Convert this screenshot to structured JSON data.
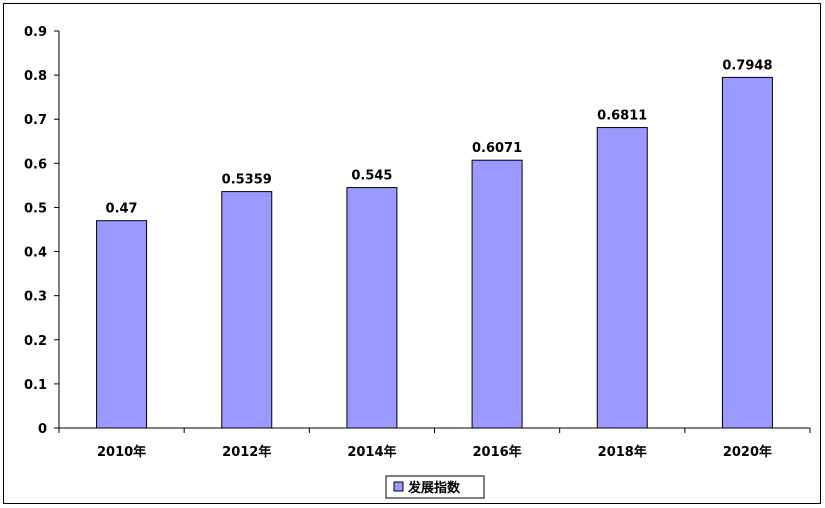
{
  "chart_data": {
    "type": "bar",
    "categories": [
      "2010年",
      "2012年",
      "2014年",
      "2016年",
      "2018年",
      "2020年"
    ],
    "series": [
      {
        "name": "发展指数",
        "values": [
          0.47,
          0.5359,
          0.545,
          0.6071,
          0.6811,
          0.7948
        ],
        "value_labels": [
          "0.47",
          "0.5359",
          "0.545",
          "0.6071",
          "0.6811",
          "0.7948"
        ],
        "color": "#9999ff"
      }
    ],
    "y_ticks": [
      0,
      0.1,
      0.2,
      0.3,
      0.4,
      0.5,
      0.6,
      0.7,
      0.8,
      0.9
    ],
    "y_tick_labels": [
      "0",
      "0.1",
      "0.2",
      "0.3",
      "0.4",
      "0.5",
      "0.6",
      "0.7",
      "0.8",
      "0.9"
    ],
    "ylim": [
      0,
      0.9
    ],
    "grid": false,
    "legend": "bottom",
    "title": "",
    "xlabel": "",
    "ylabel": ""
  }
}
